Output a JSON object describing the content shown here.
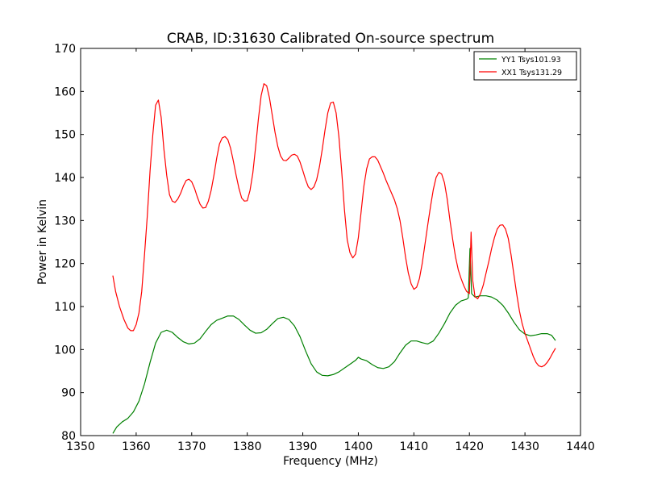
{
  "chart_data": {
    "type": "line",
    "title": "CRAB, ID:31630 Calibrated On-source spectrum",
    "xlabel": "Frequency (MHz)",
    "ylabel": "Power in Kelvin",
    "xlim": [
      1350,
      1440
    ],
    "ylim": [
      80,
      170
    ],
    "xticks": [
      "1350",
      "1360",
      "1370",
      "1380",
      "1390",
      "1400",
      "1410",
      "1420",
      "1430",
      "1440"
    ],
    "yticks": [
      "80",
      "90",
      "100",
      "110",
      "120",
      "130",
      "140",
      "150",
      "160",
      "170"
    ],
    "grid": false,
    "legend_position": "top-right",
    "series": [
      {
        "name": "YY1 Tsys101.93",
        "color": "#008000",
        "points": [
          [
            1355.8,
            80.5
          ],
          [
            1356.5,
            82.0
          ],
          [
            1357.5,
            83.2
          ],
          [
            1358.5,
            84.0
          ],
          [
            1359.5,
            85.5
          ],
          [
            1360.5,
            88.0
          ],
          [
            1361.5,
            92.0
          ],
          [
            1362.5,
            97.0
          ],
          [
            1363.5,
            101.5
          ],
          [
            1364.5,
            104.0
          ],
          [
            1365.5,
            104.5
          ],
          [
            1366.5,
            104.0
          ],
          [
            1367.5,
            102.8
          ],
          [
            1368.5,
            101.8
          ],
          [
            1369.5,
            101.3
          ],
          [
            1370.5,
            101.5
          ],
          [
            1371.5,
            102.5
          ],
          [
            1372.5,
            104.2
          ],
          [
            1373.5,
            105.8
          ],
          [
            1374.5,
            106.8
          ],
          [
            1375.5,
            107.3
          ],
          [
            1376.5,
            107.8
          ],
          [
            1377.5,
            107.8
          ],
          [
            1378.5,
            107.0
          ],
          [
            1379.5,
            105.7
          ],
          [
            1380.5,
            104.5
          ],
          [
            1381.5,
            103.8
          ],
          [
            1382.5,
            103.9
          ],
          [
            1383.5,
            104.7
          ],
          [
            1384.5,
            106.0
          ],
          [
            1385.5,
            107.2
          ],
          [
            1386.5,
            107.5
          ],
          [
            1387.5,
            107.0
          ],
          [
            1388.5,
            105.5
          ],
          [
            1389.5,
            103.0
          ],
          [
            1390.5,
            99.7
          ],
          [
            1391.5,
            96.7
          ],
          [
            1392.5,
            94.8
          ],
          [
            1393.5,
            94.0
          ],
          [
            1394.5,
            93.9
          ],
          [
            1395.5,
            94.2
          ],
          [
            1396.5,
            94.8
          ],
          [
            1397.5,
            95.7
          ],
          [
            1398.5,
            96.6
          ],
          [
            1399.5,
            97.5
          ],
          [
            1400.0,
            98.2
          ],
          [
            1400.5,
            97.8
          ],
          [
            1401.5,
            97.4
          ],
          [
            1402.5,
            96.5
          ],
          [
            1403.5,
            95.8
          ],
          [
            1404.5,
            95.6
          ],
          [
            1405.5,
            96.0
          ],
          [
            1406.5,
            97.2
          ],
          [
            1407.5,
            99.2
          ],
          [
            1408.5,
            101.0
          ],
          [
            1409.5,
            102.0
          ],
          [
            1410.5,
            102.0
          ],
          [
            1411.5,
            101.6
          ],
          [
            1412.5,
            101.3
          ],
          [
            1413.5,
            102.0
          ],
          [
            1414.5,
            103.8
          ],
          [
            1415.5,
            106.0
          ],
          [
            1416.5,
            108.5
          ],
          [
            1417.5,
            110.3
          ],
          [
            1418.5,
            111.3
          ],
          [
            1419.5,
            111.7
          ],
          [
            1419.8,
            112.0
          ],
          [
            1420.1,
            123.5
          ],
          [
            1420.4,
            113.0
          ],
          [
            1421.0,
            112.2
          ],
          [
            1422.0,
            112.5
          ],
          [
            1423.0,
            112.5
          ],
          [
            1424.0,
            112.2
          ],
          [
            1425.0,
            111.5
          ],
          [
            1426.0,
            110.3
          ],
          [
            1427.0,
            108.5
          ],
          [
            1428.0,
            106.4
          ],
          [
            1429.0,
            104.6
          ],
          [
            1430.0,
            103.6
          ],
          [
            1431.0,
            103.2
          ],
          [
            1432.0,
            103.4
          ],
          [
            1433.0,
            103.7
          ],
          [
            1434.0,
            103.7
          ],
          [
            1434.8,
            103.3
          ],
          [
            1435.5,
            102.1
          ]
        ]
      },
      {
        "name": "XX1 Tsys131.29",
        "color": "#ff0000",
        "points": [
          [
            1355.8,
            117.2
          ],
          [
            1356.3,
            113.5
          ],
          [
            1357.0,
            110.0
          ],
          [
            1357.8,
            107.0
          ],
          [
            1358.5,
            105.0
          ],
          [
            1359.0,
            104.4
          ],
          [
            1359.5,
            104.4
          ],
          [
            1360.0,
            105.8
          ],
          [
            1360.5,
            108.5
          ],
          [
            1361.0,
            113.5
          ],
          [
            1361.5,
            122.0
          ],
          [
            1362.0,
            131.0
          ],
          [
            1362.5,
            141.5
          ],
          [
            1363.0,
            150.0
          ],
          [
            1363.5,
            156.8
          ],
          [
            1364.0,
            158.0
          ],
          [
            1364.5,
            154.0
          ],
          [
            1365.0,
            146.5
          ],
          [
            1365.5,
            140.5
          ],
          [
            1366.0,
            136.0
          ],
          [
            1366.5,
            134.5
          ],
          [
            1367.0,
            134.2
          ],
          [
            1367.5,
            135.0
          ],
          [
            1368.0,
            136.3
          ],
          [
            1368.5,
            138.0
          ],
          [
            1369.0,
            139.3
          ],
          [
            1369.5,
            139.6
          ],
          [
            1370.0,
            139.0
          ],
          [
            1370.5,
            137.5
          ],
          [
            1371.0,
            135.5
          ],
          [
            1371.5,
            133.8
          ],
          [
            1372.0,
            132.9
          ],
          [
            1372.5,
            133.0
          ],
          [
            1373.0,
            134.5
          ],
          [
            1373.5,
            137.0
          ],
          [
            1374.0,
            140.5
          ],
          [
            1374.5,
            144.5
          ],
          [
            1375.0,
            147.8
          ],
          [
            1375.5,
            149.2
          ],
          [
            1376.0,
            149.5
          ],
          [
            1376.5,
            148.8
          ],
          [
            1377.0,
            146.8
          ],
          [
            1377.5,
            143.8
          ],
          [
            1378.0,
            140.5
          ],
          [
            1378.5,
            137.5
          ],
          [
            1379.0,
            135.2
          ],
          [
            1379.5,
            134.5
          ],
          [
            1380.0,
            134.6
          ],
          [
            1380.5,
            137.0
          ],
          [
            1381.0,
            141.0
          ],
          [
            1381.5,
            147.0
          ],
          [
            1382.0,
            153.5
          ],
          [
            1382.5,
            159.0
          ],
          [
            1383.0,
            161.8
          ],
          [
            1383.5,
            161.3
          ],
          [
            1384.0,
            158.5
          ],
          [
            1384.5,
            154.5
          ],
          [
            1385.0,
            150.5
          ],
          [
            1385.5,
            147.2
          ],
          [
            1386.0,
            145.0
          ],
          [
            1386.5,
            144.0
          ],
          [
            1387.0,
            143.9
          ],
          [
            1387.5,
            144.5
          ],
          [
            1388.0,
            145.2
          ],
          [
            1388.5,
            145.4
          ],
          [
            1389.0,
            145.0
          ],
          [
            1389.5,
            143.6
          ],
          [
            1390.0,
            141.6
          ],
          [
            1390.5,
            139.5
          ],
          [
            1391.0,
            137.8
          ],
          [
            1391.5,
            137.2
          ],
          [
            1392.0,
            137.8
          ],
          [
            1392.5,
            139.5
          ],
          [
            1393.0,
            142.5
          ],
          [
            1393.5,
            146.5
          ],
          [
            1394.0,
            151.0
          ],
          [
            1394.5,
            155.0
          ],
          [
            1395.0,
            157.3
          ],
          [
            1395.5,
            157.5
          ],
          [
            1396.0,
            155.0
          ],
          [
            1396.5,
            149.5
          ],
          [
            1397.0,
            141.5
          ],
          [
            1397.5,
            132.5
          ],
          [
            1398.0,
            125.5
          ],
          [
            1398.5,
            122.5
          ],
          [
            1399.0,
            121.3
          ],
          [
            1399.5,
            122.2
          ],
          [
            1400.0,
            126.0
          ],
          [
            1400.5,
            132.0
          ],
          [
            1401.0,
            138.0
          ],
          [
            1401.5,
            142.0
          ],
          [
            1402.0,
            144.3
          ],
          [
            1402.5,
            144.8
          ],
          [
            1403.0,
            144.8
          ],
          [
            1403.5,
            144.0
          ],
          [
            1404.0,
            142.5
          ],
          [
            1404.5,
            141.0
          ],
          [
            1405.0,
            139.3
          ],
          [
            1405.5,
            137.8
          ],
          [
            1406.0,
            136.3
          ],
          [
            1406.5,
            134.8
          ],
          [
            1407.0,
            132.8
          ],
          [
            1407.5,
            130.0
          ],
          [
            1408.0,
            126.0
          ],
          [
            1408.5,
            121.5
          ],
          [
            1409.0,
            117.8
          ],
          [
            1409.5,
            115.3
          ],
          [
            1410.0,
            114.0
          ],
          [
            1410.5,
            114.5
          ],
          [
            1411.0,
            116.5
          ],
          [
            1411.5,
            120.0
          ],
          [
            1412.0,
            124.5
          ],
          [
            1412.5,
            129.0
          ],
          [
            1413.0,
            133.3
          ],
          [
            1413.5,
            137.2
          ],
          [
            1414.0,
            140.0
          ],
          [
            1414.5,
            141.2
          ],
          [
            1415.0,
            140.8
          ],
          [
            1415.5,
            138.8
          ],
          [
            1416.0,
            135.0
          ],
          [
            1416.5,
            130.0
          ],
          [
            1417.0,
            125.5
          ],
          [
            1417.5,
            121.5
          ],
          [
            1418.0,
            118.5
          ],
          [
            1418.5,
            116.5
          ],
          [
            1419.0,
            114.8
          ],
          [
            1419.5,
            113.5
          ],
          [
            1420.0,
            113.0
          ],
          [
            1420.3,
            127.3
          ],
          [
            1420.6,
            116.0
          ],
          [
            1421.0,
            112.3
          ],
          [
            1421.5,
            111.8
          ],
          [
            1422.0,
            113.0
          ],
          [
            1422.5,
            115.0
          ],
          [
            1423.0,
            117.8
          ],
          [
            1423.5,
            120.5
          ],
          [
            1424.0,
            123.5
          ],
          [
            1424.5,
            126.0
          ],
          [
            1425.0,
            128.0
          ],
          [
            1425.5,
            128.9
          ],
          [
            1426.0,
            129.0
          ],
          [
            1426.5,
            128.0
          ],
          [
            1427.0,
            125.8
          ],
          [
            1427.5,
            122.0
          ],
          [
            1428.0,
            117.5
          ],
          [
            1428.5,
            113.0
          ],
          [
            1429.0,
            109.0
          ],
          [
            1429.5,
            106.0
          ],
          [
            1430.0,
            103.8
          ],
          [
            1430.5,
            102.0
          ],
          [
            1431.0,
            100.2
          ],
          [
            1431.5,
            98.4
          ],
          [
            1432.0,
            97.0
          ],
          [
            1432.5,
            96.2
          ],
          [
            1433.0,
            96.0
          ],
          [
            1433.5,
            96.3
          ],
          [
            1434.0,
            97.0
          ],
          [
            1434.5,
            98.0
          ],
          [
            1435.0,
            99.2
          ],
          [
            1435.5,
            100.3
          ]
        ]
      }
    ]
  }
}
